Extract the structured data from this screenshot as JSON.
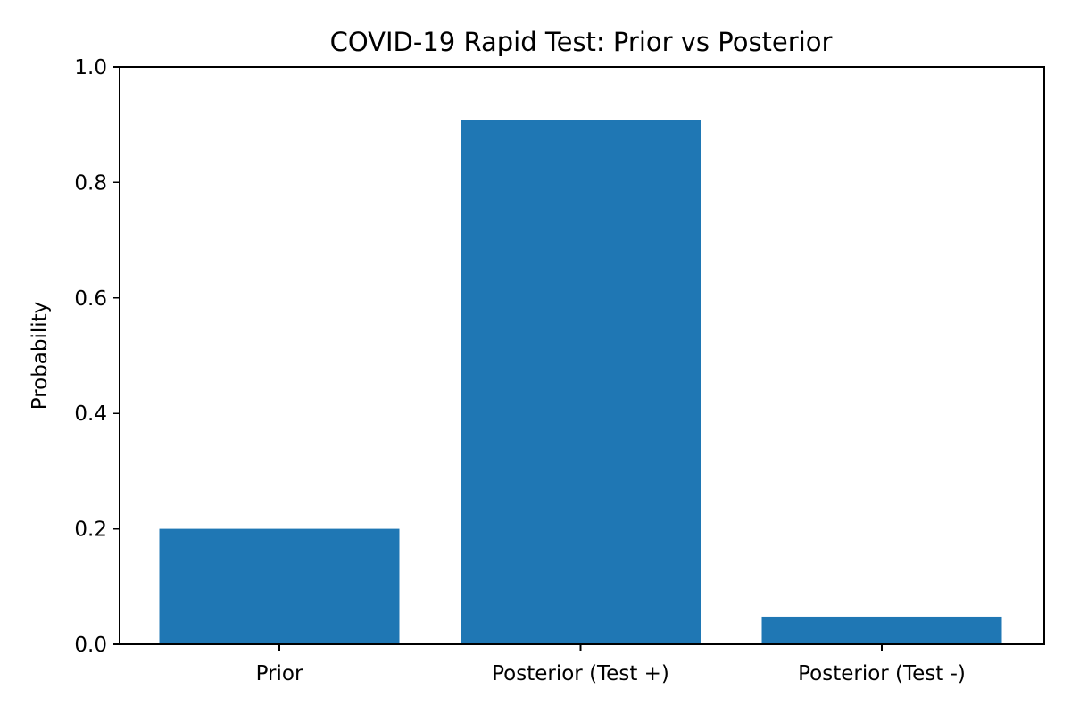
{
  "chart_data": {
    "type": "bar",
    "title": "COVID-19 Rapid Test: Prior vs Posterior",
    "xlabel": "",
    "ylabel": "Probability",
    "categories": [
      "Prior",
      "Posterior (Test +)",
      "Posterior (Test -)"
    ],
    "values": [
      0.2,
      0.908,
      0.048
    ],
    "ylim": [
      0,
      1.0
    ],
    "yticks": [
      "0.0",
      "0.2",
      "0.4",
      "0.6",
      "0.8",
      "1.0"
    ],
    "grid": false,
    "legend": "none",
    "bar_color": "#1f77b4"
  }
}
